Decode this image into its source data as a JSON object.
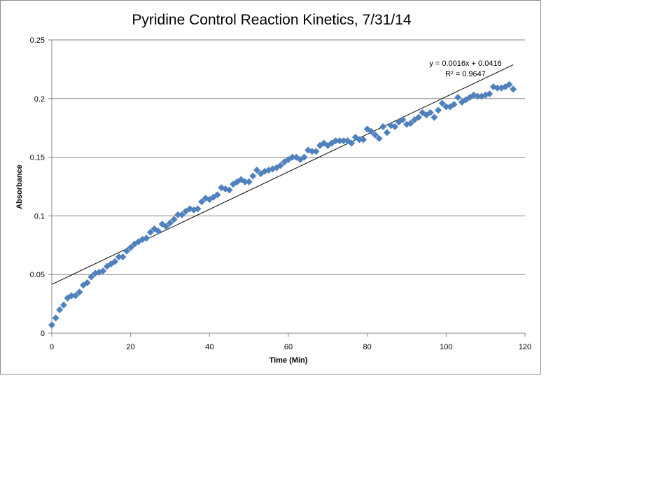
{
  "chart_data": {
    "type": "scatter",
    "title": "Pyridine Control Reaction Kinetics, 7/31/14",
    "xlabel": "Time (Min)",
    "ylabel": "Absorbance",
    "xlim": [
      0,
      120
    ],
    "ylim": [
      0,
      0.25
    ],
    "x_ticks": [
      0,
      20,
      40,
      60,
      80,
      100,
      120
    ],
    "y_ticks": [
      0,
      0.05,
      0.1,
      0.15,
      0.2,
      0.25
    ],
    "x_tick_labels": [
      "0",
      "20",
      "40",
      "60",
      "80",
      "100",
      "120"
    ],
    "y_tick_labels": [
      "0",
      "0.05",
      "0.1",
      "0.15",
      "0.2",
      "0.25"
    ],
    "grid": "horizontal",
    "legend": "none",
    "marker_color": "#4f81bd",
    "trendline": {
      "type": "linear",
      "slope": 0.0016,
      "intercept": 0.0416,
      "equation": "y = 0.0016x + 0.0416",
      "r2_text": "R² = 0.9647"
    },
    "series": [
      {
        "x": [
          0,
          1,
          2,
          3,
          4,
          5,
          6,
          7,
          8,
          9,
          10,
          11,
          12,
          13,
          14,
          15,
          16,
          17,
          18,
          19,
          20,
          21,
          22,
          23,
          24,
          25,
          26,
          27,
          28,
          29,
          30,
          31,
          32,
          33,
          34,
          35,
          36,
          37,
          38,
          39,
          40,
          41,
          42,
          43,
          44,
          45,
          46,
          47,
          48,
          49,
          50,
          51,
          52,
          53,
          54,
          55,
          56,
          57,
          58,
          59,
          60,
          61,
          62,
          63,
          64,
          65,
          66,
          67,
          68,
          69,
          70,
          71,
          72,
          73,
          74,
          75,
          76,
          77,
          78,
          79,
          80,
          81,
          82,
          83,
          84,
          85,
          86,
          87,
          88,
          89,
          90,
          91,
          92,
          93,
          94,
          95,
          96,
          97,
          98,
          99,
          100,
          101,
          102,
          103,
          104,
          105,
          106,
          107,
          108,
          109,
          110,
          111,
          112,
          113,
          114,
          115,
          116,
          117
        ],
        "y": [
          0.007,
          0.013,
          0.02,
          0.024,
          0.03,
          0.032,
          0.032,
          0.035,
          0.041,
          0.043,
          0.048,
          0.051,
          0.052,
          0.053,
          0.057,
          0.059,
          0.061,
          0.065,
          0.065,
          0.07,
          0.073,
          0.076,
          0.078,
          0.08,
          0.081,
          0.086,
          0.089,
          0.087,
          0.093,
          0.091,
          0.094,
          0.097,
          0.101,
          0.101,
          0.104,
          0.106,
          0.105,
          0.106,
          0.112,
          0.115,
          0.114,
          0.116,
          0.118,
          0.124,
          0.123,
          0.122,
          0.127,
          0.129,
          0.131,
          0.129,
          0.129,
          0.134,
          0.139,
          0.136,
          0.138,
          0.139,
          0.14,
          0.141,
          0.143,
          0.146,
          0.148,
          0.15,
          0.15,
          0.148,
          0.15,
          0.156,
          0.155,
          0.155,
          0.16,
          0.162,
          0.16,
          0.162,
          0.164,
          0.164,
          0.164,
          0.164,
          0.162,
          0.167,
          0.165,
          0.165,
          0.174,
          0.172,
          0.169,
          0.166,
          0.176,
          0.171,
          0.177,
          0.176,
          0.18,
          0.182,
          0.178,
          0.179,
          0.182,
          0.184,
          0.188,
          0.186,
          0.188,
          0.184,
          0.19,
          0.196,
          0.193,
          0.193,
          0.195,
          0.201,
          0.197,
          0.199,
          0.201,
          0.203,
          0.202,
          0.202,
          0.203,
          0.204,
          0.21,
          0.209,
          0.209,
          0.21,
          0.212,
          0.208
        ]
      }
    ]
  }
}
